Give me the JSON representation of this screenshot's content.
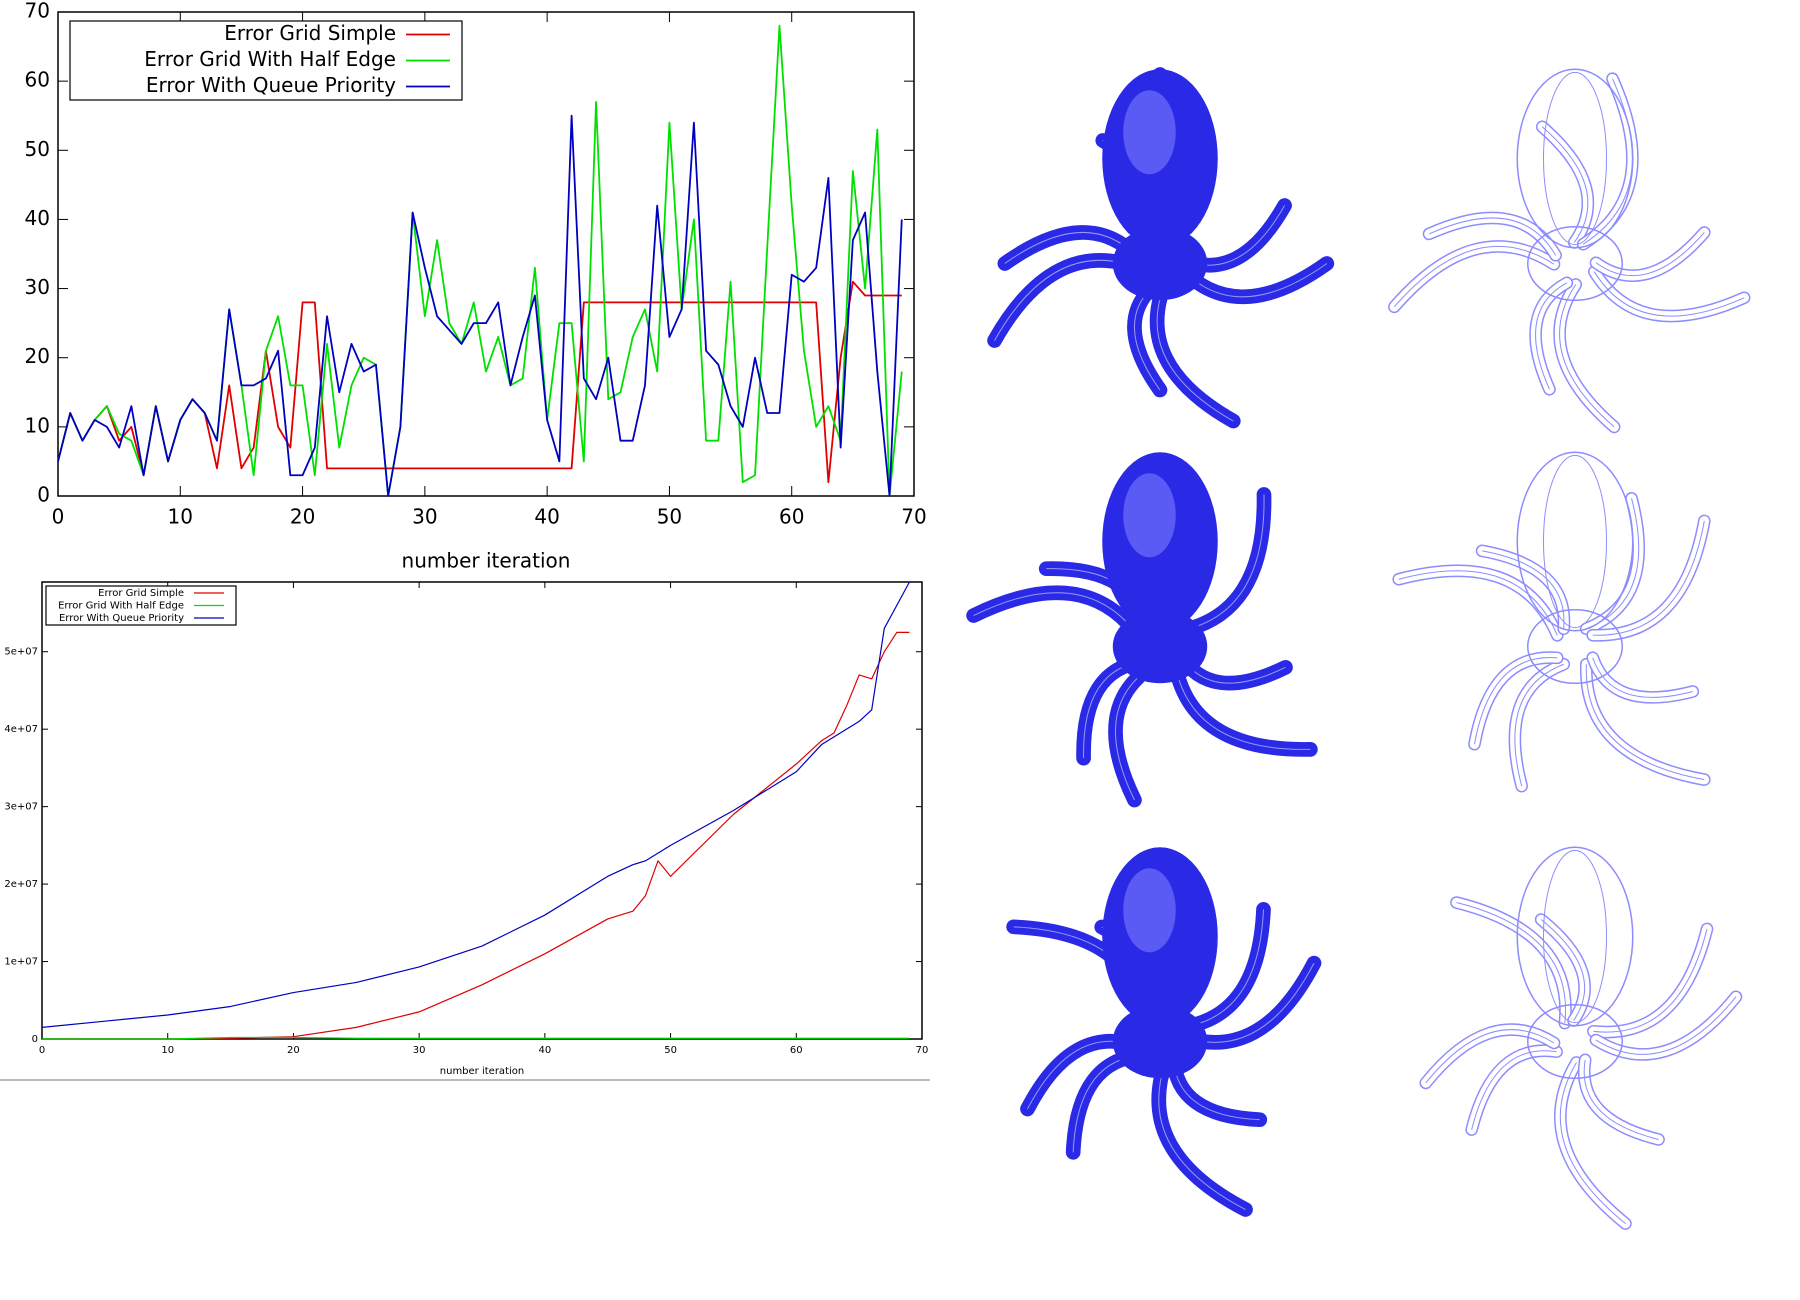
{
  "chart_data": [
    {
      "type": "line",
      "x_label": "number iteration",
      "x": [
        0,
        1,
        2,
        3,
        4,
        5,
        6,
        7,
        8,
        9,
        10,
        11,
        12,
        13,
        14,
        15,
        16,
        17,
        18,
        19,
        20,
        21,
        22,
        23,
        24,
        25,
        26,
        27,
        28,
        29,
        30,
        31,
        32,
        33,
        34,
        35,
        36,
        37,
        38,
        39,
        40,
        41,
        42,
        43,
        44,
        45,
        46,
        47,
        48,
        49,
        50,
        51,
        52,
        53,
        54,
        55,
        56,
        57,
        58,
        59,
        60,
        61,
        62,
        63,
        64,
        65,
        66,
        67,
        68,
        69
      ],
      "series": [
        {
          "name": "Error Grid Simple",
          "color": "#e00000",
          "values": [
            5,
            12,
            8,
            11,
            13,
            8,
            10,
            3,
            13,
            5,
            11,
            14,
            12,
            4,
            16,
            4,
            7,
            21,
            10,
            7,
            28,
            28,
            4,
            4,
            4,
            4,
            4,
            4,
            4,
            4,
            4,
            4,
            4,
            4,
            4,
            4,
            4,
            4,
            4,
            4,
            4,
            4,
            4,
            28,
            28,
            28,
            28,
            28,
            28,
            28,
            28,
            28,
            28,
            28,
            28,
            28,
            28,
            28,
            28,
            28,
            28,
            28,
            28,
            2,
            20,
            31,
            29,
            29,
            29,
            29
          ]
        },
        {
          "name": "Error Grid With Half Edge",
          "color": "#00e000",
          "values": [
            5,
            12,
            8,
            11,
            13,
            9,
            8,
            3,
            13,
            5,
            11,
            14,
            12,
            8,
            27,
            16,
            3,
            21,
            26,
            16,
            16,
            3,
            22,
            7,
            16,
            20,
            19,
            0,
            10,
            41,
            26,
            37,
            25,
            22,
            28,
            18,
            23,
            16,
            17,
            33,
            11,
            25,
            25,
            5,
            57,
            14,
            15,
            23,
            27,
            18,
            54,
            27,
            40,
            8,
            8,
            31,
            2,
            3,
            36,
            68,
            42,
            21,
            10,
            13,
            8,
            47,
            30,
            53,
            0,
            18
          ]
        },
        {
          "name": "Error With Queue Priority",
          "color": "#0000c0",
          "values": [
            5,
            12,
            8,
            11,
            10,
            7,
            13,
            3,
            13,
            5,
            11,
            14,
            12,
            8,
            27,
            16,
            16,
            17,
            21,
            3,
            3,
            7,
            26,
            15,
            22,
            18,
            19,
            0,
            10,
            41,
            33,
            26,
            24,
            22,
            25,
            25,
            28,
            16,
            23,
            29,
            11,
            5,
            55,
            17,
            14,
            20,
            8,
            8,
            16,
            42,
            23,
            27,
            54,
            21,
            19,
            13,
            10,
            20,
            12,
            12,
            32,
            31,
            33,
            46,
            7,
            37,
            41,
            18,
            0,
            40
          ]
        }
      ],
      "xlim": [
        0,
        70
      ],
      "ylim": [
        0,
        70
      ],
      "xticks": [
        0,
        10,
        20,
        30,
        40,
        50,
        60,
        70
      ],
      "yticks": [
        0,
        10,
        20,
        30,
        40,
        50,
        60,
        70
      ],
      "legend": "top-left"
    },
    {
      "type": "line",
      "x_label": "number iteration",
      "x": [
        0,
        5,
        10,
        15,
        20,
        25,
        30,
        35,
        40,
        45,
        47,
        48,
        49,
        50,
        55,
        60,
        62,
        63,
        64,
        65,
        66,
        67,
        68,
        69
      ],
      "series": [
        {
          "name": "Error Grid Simple",
          "color": "#e00000",
          "values": [
            0,
            0,
            0,
            100000,
            300000,
            1500000,
            3500000,
            7000000,
            11000000,
            15500000,
            16500000,
            18500000,
            23000000,
            21000000,
            29000000,
            35500000,
            38500000,
            39500000,
            43000000,
            47000000,
            46500000,
            50000000,
            52500000,
            52500000
          ]
        },
        {
          "name": "Error Grid With Half Edge",
          "color": "#00e000",
          "values": [
            0,
            0,
            0,
            200000,
            200000,
            100000,
            100000,
            100000,
            100000,
            100000,
            100000,
            100000,
            100000,
            100000,
            100000,
            100000,
            100000,
            100000,
            100000,
            100000,
            100000,
            100000,
            100000,
            100000
          ]
        },
        {
          "name": "Error With Queue Priority",
          "color": "#0000c0",
          "values": [
            1500000,
            2300000,
            3100000,
            4200000,
            6000000,
            7300000,
            9300000,
            12000000,
            16000000,
            21000000,
            22500000,
            23000000,
            24000000,
            25000000,
            29500000,
            34500000,
            38000000,
            39000000,
            40000000,
            41000000,
            42500000,
            53000000,
            56000000,
            59000000
          ]
        }
      ],
      "xlim": [
        0,
        70
      ],
      "ylim": [
        0,
        59000000
      ],
      "xticks": [
        0,
        10,
        20,
        30,
        40,
        50,
        60,
        70
      ],
      "yticks": [
        0,
        {
          "value": 10000000,
          "label": "1e+07"
        },
        {
          "value": 20000000,
          "label": "2e+07"
        },
        {
          "value": 30000000,
          "label": "3e+07"
        },
        {
          "value": 40000000,
          "label": "4e+07"
        },
        {
          "value": 50000000,
          "label": "5e+07"
        }
      ],
      "legend": "top-left"
    }
  ]
}
